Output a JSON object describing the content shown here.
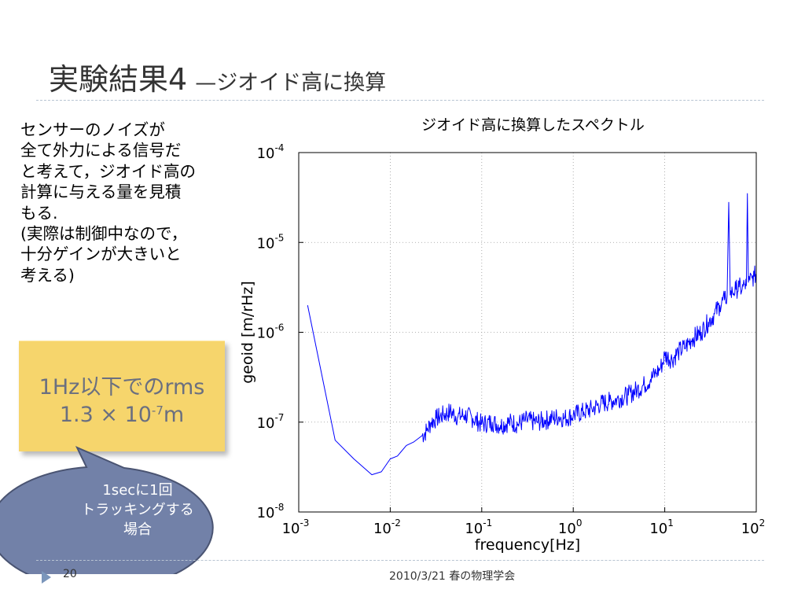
{
  "slide": {
    "title": "実験結果4",
    "subtitle": "—ジオイド高に換算",
    "body_lines": [
      "センサーのノイズが",
      "全て外力による信号だ",
      "と考えて，ジオイド高の",
      "計算に与える量を見積",
      "もる.",
      "(実際は制御中なので，",
      "十分ゲインが大きいと",
      "考える)"
    ],
    "rms_box": {
      "line1": "1Hz以下でのrms",
      "line2_prefix": "1.3 × 10",
      "line2_exponent": "-7",
      "line2_suffix": "m"
    },
    "callout_lines": [
      "1secに1回",
      "トラッキングする",
      "場合"
    ],
    "footer": {
      "page_number": "20",
      "text": "2010/3/21   春の物理学会"
    }
  },
  "colors": {
    "title": "#333333",
    "rms_box_bg": "#f6d56c",
    "rms_text": "#6a6f80",
    "callout_bg": "#7281a8",
    "callout_border": "#4a5472",
    "series": "#0000ff",
    "footer_arrow": "#7b96bb"
  },
  "chart_data": {
    "type": "line",
    "title": "ジオイド高に換算したスペクトル",
    "xlabel": "frequency[Hz]",
    "ylabel": "geoid [m/rHz]",
    "x_scale": "log",
    "y_scale": "log",
    "xlim": [
      0.001,
      100
    ],
    "ylim": [
      1e-08,
      0.0001
    ],
    "grid": true,
    "x_ticks": [
      {
        "base": "10",
        "exp": "-3"
      },
      {
        "base": "10",
        "exp": "-2"
      },
      {
        "base": "10",
        "exp": "-1"
      },
      {
        "base": "10",
        "exp": "0"
      },
      {
        "base": "10",
        "exp": "1"
      },
      {
        "base": "10",
        "exp": "2"
      }
    ],
    "y_ticks": [
      {
        "base": "10",
        "exp": "-8"
      },
      {
        "base": "10",
        "exp": "-7"
      },
      {
        "base": "10",
        "exp": "-6"
      },
      {
        "base": "10",
        "exp": "-5"
      },
      {
        "base": "10",
        "exp": "-4"
      }
    ],
    "series": [
      {
        "x": [
          0.00125,
          0.0025,
          0.004,
          0.0063,
          0.008,
          0.01,
          0.012,
          0.015,
          0.018,
          0.022,
          0.025,
          0.028,
          0.032,
          0.038,
          0.045,
          0.055,
          0.065,
          0.08,
          0.1,
          0.13,
          0.16,
          0.2,
          0.25,
          0.3,
          0.4,
          0.5,
          0.6,
          0.7,
          0.8,
          1.0,
          1.3,
          1.6,
          2.0,
          2.5,
          3.0,
          4.0,
          5.0,
          6.0,
          7.0,
          8.0,
          9.0,
          10.0,
          12.0,
          14.0,
          17.0,
          20.0,
          25.0,
          30.0,
          35.0,
          40.0,
          45.0,
          48.0,
          50.0,
          52.0,
          55.0,
          60.0,
          65.0,
          70.0,
          75.0,
          78.0,
          80.0,
          82.0,
          85.0,
          90.0,
          95.0,
          100.0
        ],
        "y": [
          2e-06,
          6.3e-08,
          3.9e-08,
          2.6e-08,
          2.8e-08,
          3.9e-08,
          4.2e-08,
          5.5e-08,
          6e-08,
          7e-08,
          8e-08,
          1e-07,
          1.1e-07,
          1.2e-07,
          1.3e-07,
          1.15e-07,
          1.2e-07,
          1.1e-07,
          9.5e-08,
          1e-07,
          9.2e-08,
          1e-07,
          9.5e-08,
          1.05e-07,
          1e-07,
          1.05e-07,
          1.1e-07,
          1.15e-07,
          1.1e-07,
          1.2e-07,
          1.3e-07,
          1.4e-07,
          1.6e-07,
          1.7e-07,
          1.8e-07,
          2e-07,
          2.3e-07,
          2.6e-07,
          3e-07,
          3.5e-07,
          4e-07,
          5.5e-07,
          5e-07,
          6e-07,
          7e-07,
          8.5e-07,
          1e-06,
          1.3e-06,
          1.6e-06,
          2e-06,
          2.3e-06,
          2.5e-06,
          2.8e-05,
          2.6e-06,
          2.8e-06,
          3e-06,
          3.2e-06,
          3e-06,
          3.4e-06,
          3.3e-06,
          3.5e-05,
          3.6e-06,
          3.8e-06,
          4e-06,
          4.2e-06,
          4.5e-06
        ]
      }
    ]
  }
}
